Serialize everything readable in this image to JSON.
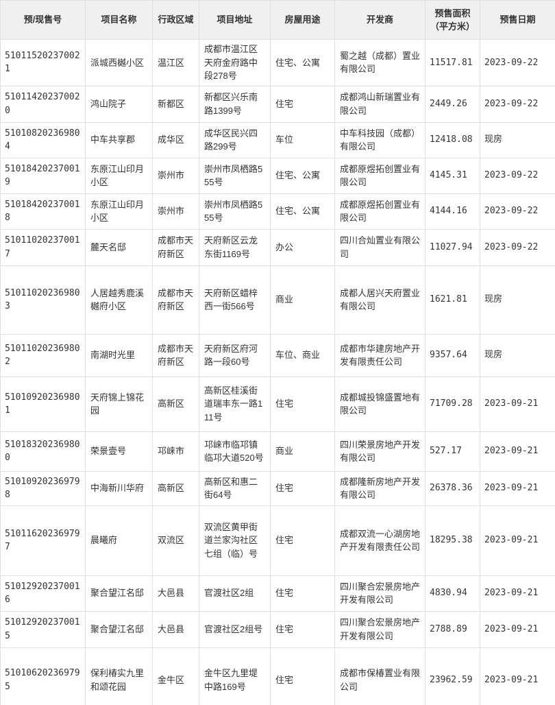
{
  "chart_data": {
    "type": "table",
    "columns": [
      "预/现售号",
      "项目名称",
      "行政区域",
      "项目地址",
      "房屋用途",
      "开发商",
      "预售面积（平方米）",
      "预售日期"
    ],
    "rows": [
      [
        "510115202370021",
        "派城西樾小区",
        "温江区",
        "成都市温江区天府金府路中段278号",
        "住宅、公寓",
        "蜀之越（成都）置业有限公司",
        "11517.81",
        "2023-09-22"
      ],
      [
        "510114202370020",
        "鸿山院子",
        "新都区",
        "新都区兴乐南路1399号",
        "住宅",
        "成都鸿山新瑞置业有限公司",
        "2449.26",
        "2023-09-22"
      ],
      [
        "510108202369804",
        "中车共享郡",
        "成华区",
        "成华区民兴四路299号",
        "车位",
        "中车科技园（成都）有限公司",
        "12418.08",
        "现房"
      ],
      [
        "510184202370019",
        "东原江山印月小区",
        "崇州市",
        "崇州市凤栖路555号",
        "住宅、公寓",
        "成都原煜拓创置业有限公司",
        "4145.31",
        "2023-09-22"
      ],
      [
        "510184202370018",
        "东原江山印月小区",
        "崇州市",
        "崇州市凤栖路555号",
        "住宅、公寓",
        "成都原煜拓创置业有限公司",
        "4144.16",
        "2023-09-22"
      ],
      [
        "510110202370017",
        "麓天名邸",
        "成都市天府新区",
        "天府新区云龙东街1169号",
        "办公",
        "四川合灿置业有限公司",
        "11027.94",
        "2023-09-22"
      ],
      [
        "510110202369803",
        "人居越秀鹿溪樾府小区",
        "成都市天府新区",
        "天府新区蜡梓西一街566号",
        "商业",
        "成都人居兴天府置业有限公司",
        "1621.81",
        "现房"
      ],
      [
        "510110202369802",
        "南湖时光里",
        "成都市天府新区",
        "天府新区府河路一段60号",
        "车位、商业",
        "成都市华建房地产开发有限责任公司",
        "9357.64",
        "现房"
      ],
      [
        "510109202369801",
        "天府锦上锦花园",
        "高新区",
        "高新区桂溪街道瑞丰东一路111号",
        "住宅",
        "成都城投锦盛置地有限公司",
        "71709.28",
        "2023-09-21"
      ],
      [
        "510183202369800",
        "荣景壹号",
        "邛崃市",
        "邛崃市临邛镇临邛大道520号",
        "商业",
        "四川荣景房地产开发有限公司",
        "527.17",
        "2023-09-21"
      ],
      [
        "510109202369798",
        "中海新川华府",
        "高新区",
        "高新区和惠二街64号",
        "住宅",
        "成都隆新房地产开发有限公司",
        "26378.36",
        "2023-09-21"
      ],
      [
        "510116202369797",
        "晨曦府",
        "双流区",
        "双流区黄甲街道兰家沟社区七组（临）号",
        "住宅",
        "成都双流一心湖房地产开发有限责任公司",
        "18295.38",
        "2023-09-21"
      ],
      [
        "510129202370016",
        "聚合望江名邸",
        "大邑县",
        "官渡社区2组",
        "住宅",
        "四川聚合宏景房地产开发有限公司",
        "4830.94",
        "2023-09-21"
      ],
      [
        "510129202370015",
        "聚合望江名邸",
        "大邑县",
        "官渡社区2组号",
        "住宅",
        "四川聚合宏景房地产开发有限公司",
        "2788.89",
        "2023-09-21"
      ],
      [
        "510106202369795",
        "保利椿实九里和颂花园",
        "金牛区",
        "金牛区九里堤中路169号",
        "住宅",
        "成都市保椿置业有限公司",
        "23962.59",
        "2023-09-21"
      ]
    ]
  }
}
